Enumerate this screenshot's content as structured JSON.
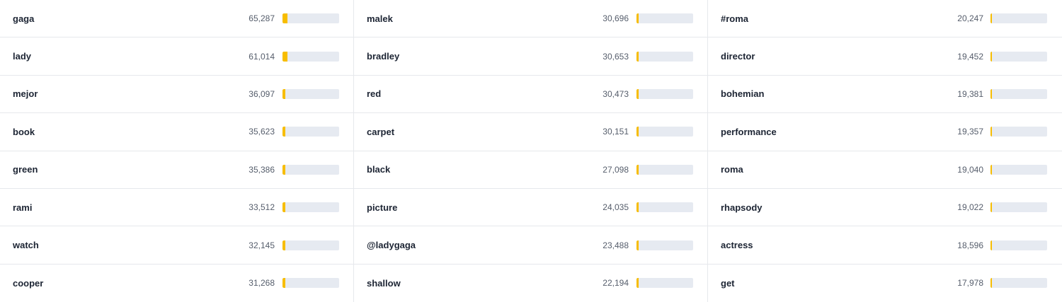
{
  "columns": [
    [
      {
        "term": "gaga",
        "count": {
          "value": 65287,
          "label": "65,287"
        }
      },
      {
        "term": "lady",
        "count": {
          "value": 61014,
          "label": "61,014"
        }
      },
      {
        "term": "mejor",
        "count": {
          "value": 36097,
          "label": "36,097"
        }
      },
      {
        "term": "book",
        "count": {
          "value": 35623,
          "label": "35,623"
        }
      },
      {
        "term": "green",
        "count": {
          "value": 35386,
          "label": "35,386"
        }
      },
      {
        "term": "rami",
        "count": {
          "value": 33512,
          "label": "33,512"
        }
      },
      {
        "term": "watch",
        "count": {
          "value": 32145,
          "label": "32,145"
        }
      },
      {
        "term": "cooper",
        "count": {
          "value": 31268,
          "label": "31,268"
        }
      }
    ],
    [
      {
        "term": "malek",
        "count": {
          "value": 30696,
          "label": "30,696"
        }
      },
      {
        "term": "bradley",
        "count": {
          "value": 30653,
          "label": "30,653"
        }
      },
      {
        "term": "red",
        "count": {
          "value": 30473,
          "label": "30,473"
        }
      },
      {
        "term": "carpet",
        "count": {
          "value": 30151,
          "label": "30,151"
        }
      },
      {
        "term": "black",
        "count": {
          "value": 27098,
          "label": "27,098"
        }
      },
      {
        "term": "picture",
        "count": {
          "value": 24035,
          "label": "24,035"
        }
      },
      {
        "term": "@ladygaga",
        "count": {
          "value": 23488,
          "label": "23,488"
        }
      },
      {
        "term": "shallow",
        "count": {
          "value": 22194,
          "label": "22,194"
        }
      }
    ],
    [
      {
        "term": "#roma",
        "count": {
          "value": 20247,
          "label": "20,247"
        }
      },
      {
        "term": "director",
        "count": {
          "value": 19452,
          "label": "19,452"
        }
      },
      {
        "term": "bohemian",
        "count": {
          "value": 19381,
          "label": "19,381"
        }
      },
      {
        "term": "performance",
        "count": {
          "value": 19357,
          "label": "19,357"
        }
      },
      {
        "term": "roma",
        "count": {
          "value": 19040,
          "label": "19,040"
        }
      },
      {
        "term": "rhapsody",
        "count": {
          "value": 19022,
          "label": "19,022"
        }
      },
      {
        "term": "actress",
        "count": {
          "value": 18596,
          "label": "18,596"
        }
      },
      {
        "term": "get",
        "count": {
          "value": 17978,
          "label": "17,978"
        }
      }
    ]
  ]
}
